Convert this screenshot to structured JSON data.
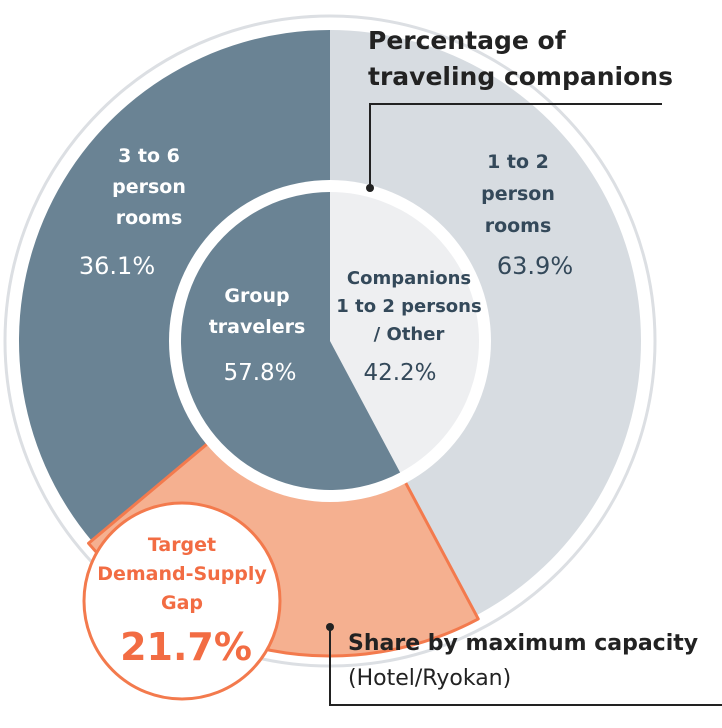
{
  "colors": {
    "outer_ring_stroke": "#dcdfe3",
    "dark_slate": "#6a8394",
    "light_gray": "#d7dce1",
    "lighter_gray": "#eeeff1",
    "orange_fill": "#f5b090",
    "orange_stroke": "#f37a4d",
    "orange_text": "#f26c43",
    "text_dark": "#222222",
    "text_white": "#ffffff",
    "text_slate": "#34495a"
  },
  "callouts": {
    "top": {
      "line1": "Percentage of",
      "line2": "traveling companions"
    },
    "bottom": {
      "line1": "Share by maximum capacity",
      "line2": "(Hotel/Ryokan)"
    },
    "gap": {
      "line1": "Target",
      "line2": "Demand-Supply",
      "line3": "Gap",
      "value": "21.7%"
    }
  },
  "chart_data": [
    {
      "type": "pie",
      "title": "Share by maximum capacity (Hotel/Ryokan)",
      "unit": "%",
      "slices": [
        {
          "label": "1 to 2 person rooms",
          "label_lines": [
            "1 to 2",
            "person",
            "rooms"
          ],
          "value": 63.9,
          "display": "63.9%"
        },
        {
          "label": "3 to 6 person rooms",
          "label_lines": [
            "3 to 6",
            "person",
            "rooms"
          ],
          "value": 36.1,
          "display": "36.1%"
        }
      ]
    },
    {
      "type": "pie",
      "title": "Percentage of traveling companions",
      "unit": "%",
      "slices": [
        {
          "label": "Companions 1 to 2 persons / Other",
          "label_lines": [
            "Companions",
            "1 to 2 persons",
            "/ Other"
          ],
          "value": 42.2,
          "display": "42.2%"
        },
        {
          "label": "Group travelers",
          "label_lines": [
            "Group",
            "travelers"
          ],
          "value": 57.8,
          "display": "57.8%"
        }
      ]
    },
    {
      "type": "annotation",
      "label": "Target Demand-Supply Gap",
      "value": 21.7,
      "display": "21.7%"
    }
  ]
}
